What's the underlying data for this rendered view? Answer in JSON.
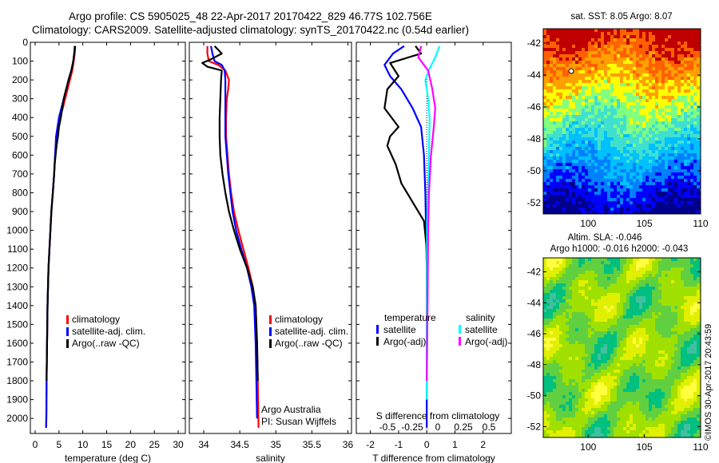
{
  "header": {
    "line1": "Argo profile: CS 5905025_48 22-Apr-2017 20170422_829 46.77S 102.756E",
    "line2": "Climatology: CARS2009. Satellite-adjusted climatology: synTS_20170422.nc (0.54d earlier)"
  },
  "colors": {
    "climatology": "#ff0000",
    "satellite": "#0000ff",
    "argo": "#000000",
    "satellite_s": "#00ffff",
    "argo_s": "#ff00ff"
  },
  "chart_data": [
    {
      "type": "line",
      "id": "temperature",
      "xlabel": "temperature (deg C)",
      "ylabel": "",
      "xlim": [
        -1,
        31.5
      ],
      "ylim": [
        2080,
        0
      ],
      "xticks": [
        0,
        5,
        10,
        15,
        20,
        25,
        30
      ],
      "yticks": [
        0,
        100,
        200,
        300,
        400,
        500,
        600,
        700,
        800,
        900,
        1000,
        1100,
        1200,
        1300,
        1400,
        1500,
        1600,
        1700,
        1800,
        1900,
        2000
      ],
      "legend": {
        "placement": "lower-center",
        "entries": [
          "climatology",
          "satellite-adj. clim.",
          "Argo(..raw -QC)"
        ]
      },
      "series": [
        {
          "name": "climatology",
          "color": "#ff0000",
          "x": [
            8.4,
            8.3,
            8.1,
            7.8,
            7.3,
            6.8,
            6.3,
            5.8,
            5.2,
            4.8,
            4.5,
            4.2,
            4.0,
            3.7,
            3.4,
            3.2,
            3.0,
            2.8,
            2.6,
            2.5,
            2.4,
            2.35,
            2.3
          ],
          "y": [
            20,
            60,
            100,
            150,
            200,
            250,
            300,
            350,
            400,
            450,
            500,
            600,
            700,
            800,
            900,
            1000,
            1100,
            1200,
            1400,
            1600,
            1800,
            2000,
            2050
          ]
        },
        {
          "name": "satellite-adj. clim.",
          "color": "#0000ff",
          "x": [
            8.3,
            8.2,
            8.0,
            7.6,
            7.0,
            6.5,
            6.0,
            5.5,
            5.0,
            4.7,
            4.4,
            4.2,
            4.0,
            3.7,
            3.4,
            3.2,
            3.0,
            2.8,
            2.6,
            2.5,
            2.4,
            2.35,
            2.3
          ],
          "y": [
            20,
            60,
            100,
            150,
            200,
            250,
            300,
            350,
            400,
            450,
            500,
            600,
            700,
            800,
            900,
            1000,
            1100,
            1200,
            1400,
            1600,
            1800,
            2000,
            2050
          ]
        },
        {
          "name": "Argo(..raw -QC)",
          "color": "#000000",
          "x": [
            8.4,
            8.2,
            8.0,
            7.6,
            7.0,
            6.5,
            6.0,
            5.7,
            5.4,
            5.0,
            4.8,
            4.5,
            4.3,
            4.1,
            4.0,
            3.7,
            3.4,
            3.2,
            3.0,
            2.8,
            2.6,
            2.5,
            2.4
          ],
          "y": [
            20,
            60,
            100,
            150,
            200,
            250,
            300,
            350,
            400,
            450,
            500,
            550,
            600,
            650,
            700,
            800,
            900,
            1000,
            1100,
            1200,
            1400,
            1600,
            1800
          ]
        }
      ]
    },
    {
      "type": "line",
      "id": "salinity",
      "xlabel": "salinity",
      "ylabel": "",
      "xlim": [
        33.8,
        36.05
      ],
      "ylim": [
        2080,
        0
      ],
      "xticks": [
        34,
        34.5,
        35,
        35.5,
        36
      ],
      "annotations": [
        "Argo Australia",
        "PI: Susan Wijffels"
      ],
      "legend": {
        "placement": "lower-right",
        "entries": [
          "climatology",
          "satellite-adj. clim.",
          "Argo(..raw -QC)"
        ]
      },
      "series": [
        {
          "name": "climatology",
          "color": "#ff0000",
          "x": [
            34.05,
            34.05,
            34.07,
            34.2,
            34.3,
            34.35,
            34.34,
            34.32,
            34.31,
            34.31,
            34.33,
            34.35,
            34.38,
            34.42,
            34.48,
            34.55,
            34.62,
            34.68,
            34.72,
            34.74,
            34.75,
            34.76
          ],
          "y": [
            20,
            60,
            100,
            120,
            150,
            200,
            250,
            300,
            400,
            500,
            600,
            700,
            800,
            900,
            1000,
            1100,
            1200,
            1300,
            1400,
            1600,
            1800,
            2050
          ]
        },
        {
          "name": "satellite-adj. clim.",
          "color": "#0000ff",
          "x": [
            34.1,
            34.12,
            34.15,
            34.25,
            34.29,
            34.3,
            34.3,
            34.3,
            34.3,
            34.32,
            34.34,
            34.37,
            34.4,
            34.45,
            34.52,
            34.6,
            34.66,
            34.7,
            34.72,
            34.73,
            34.74
          ],
          "y": [
            20,
            60,
            100,
            120,
            150,
            200,
            300,
            400,
            500,
            600,
            700,
            800,
            900,
            1000,
            1100,
            1200,
            1300,
            1400,
            1600,
            1800,
            2000
          ]
        },
        {
          "name": "Argo(..raw -QC)",
          "color": "#000000",
          "x": [
            34.15,
            34.2,
            34.25,
            34.1,
            33.98,
            34.05,
            34.25,
            34.24,
            34.23,
            34.22,
            34.22,
            34.23,
            34.26,
            34.3,
            34.35,
            34.42,
            34.5,
            34.6,
            34.68,
            34.72,
            34.74,
            34.75
          ],
          "y": [
            20,
            40,
            60,
            90,
            110,
            130,
            150,
            200,
            300,
            400,
            500,
            600,
            700,
            800,
            900,
            1000,
            1100,
            1200,
            1300,
            1400,
            1600,
            1800
          ]
        }
      ]
    },
    {
      "type": "line",
      "id": "difference",
      "xlabel": "T difference from climatology",
      "top_label": "S difference from climatology",
      "xlim": [
        -2.5,
        3.0
      ],
      "ylim": [
        2080,
        0
      ],
      "xticks": [
        -2,
        -1,
        0,
        1,
        2
      ],
      "s_xticks": [
        "-0.5",
        "-0.25",
        "0",
        "0.25",
        "0.5"
      ],
      "legend": {
        "placement": "lower-center",
        "temperature_title": "temperature",
        "salinity_title": "salinity",
        "entries_t": [
          "satellite",
          "Argo(-adj)"
        ],
        "entries_s": [
          "satellite",
          "Argo(-adj)"
        ]
      },
      "series": [
        {
          "name": "temperature satellite",
          "color": "#0000ff",
          "x": [
            -0.8,
            -1.2,
            -1.5,
            -1.3,
            -0.9,
            -0.5,
            -0.2,
            -0.1,
            -0.05,
            0.0,
            0.0
          ],
          "y": [
            20,
            60,
            120,
            180,
            250,
            350,
            450,
            600,
            800,
            1200,
            2050
          ]
        },
        {
          "name": "temperature Argo(-adj)",
          "color": "#000000",
          "x": [
            -0.4,
            -0.2,
            -1.3,
            -1.0,
            -1.4,
            -1.5,
            -1.0,
            -1.3,
            -1.4,
            -1.1,
            -0.9,
            -0.5,
            -0.1,
            0.0,
            0.0
          ],
          "y": [
            20,
            60,
            110,
            180,
            250,
            350,
            450,
            500,
            550,
            650,
            750,
            850,
            950,
            1100,
            1600
          ]
        },
        {
          "name": "salinity satellite",
          "color": "#00ffff",
          "x": [
            0.45,
            0.3,
            0.1,
            -0.05,
            0.05,
            0.1,
            0.08,
            0.04,
            0.01,
            0.0,
            0.0
          ],
          "y": [
            20,
            80,
            140,
            200,
            300,
            400,
            600,
            800,
            1000,
            1400,
            1900
          ]
        },
        {
          "name": "salinity Argo(-adj)",
          "color": "#ff00ff",
          "x": [
            -0.2,
            -0.3,
            0.05,
            0.2,
            0.3,
            0.25,
            0.15,
            0.08,
            0.05,
            0.03,
            0.0
          ],
          "y": [
            20,
            80,
            150,
            250,
            350,
            450,
            600,
            800,
            1000,
            1400,
            1800
          ]
        }
      ]
    },
    {
      "type": "heatmap",
      "id": "sst-map",
      "title": "sat. SST: 8.05 Argo: 8.07",
      "xticks": [
        100,
        105,
        110
      ],
      "yticks": [
        -42,
        -44,
        -46,
        -48,
        -50,
        -52
      ],
      "xlim": [
        96,
        110
      ],
      "ylim": [
        -52.7,
        -41.1
      ],
      "colors": [
        "#00008b",
        "#0000ff",
        "#0080ff",
        "#00c0ff",
        "#40e0d0",
        "#80ff80",
        "#ffff00",
        "#ffa000",
        "#ff6000",
        "#c00000"
      ]
    },
    {
      "type": "heatmap",
      "id": "sla-map",
      "title_line1": "Altim. SLA: -0.046",
      "title_line2": "Argo h1000: -0.016 h2000: -0.043",
      "xticks": [
        100,
        105,
        110
      ],
      "yticks": [
        -42,
        -44,
        -46,
        -48,
        -50,
        -52
      ],
      "xlim": [
        96,
        110
      ],
      "ylim": [
        -52.7,
        -41.1
      ],
      "colors": [
        "#40c0a0",
        "#00c080",
        "#60d040",
        "#a0e000",
        "#e0f000",
        "#ffff40"
      ]
    }
  ],
  "footer_stamp": "©IMOS 30-Apr-2017 20:43:59"
}
